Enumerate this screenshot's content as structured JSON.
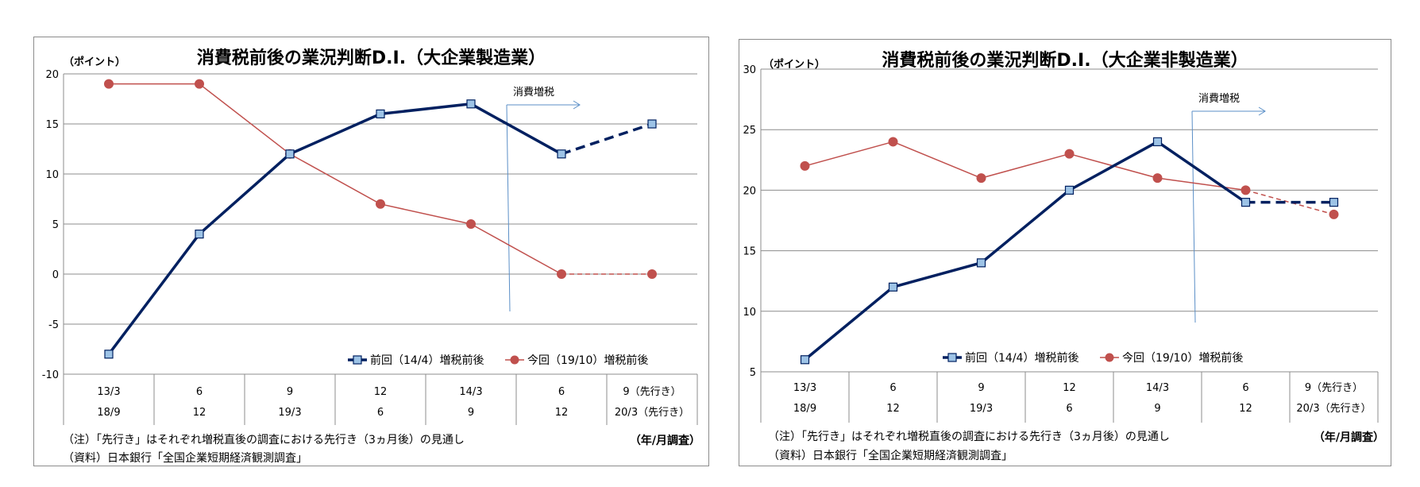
{
  "chart_data": [
    {
      "type": "line",
      "title": "消費税前後の業況判断D.I.（大企業製造業）",
      "ylabel": "（ポイント）",
      "ylim": [
        -10,
        20
      ],
      "yticks": [
        -10,
        -5,
        0,
        5,
        10,
        15,
        20
      ],
      "x_label": "（年/月調査）",
      "categories_row1": [
        "13/3",
        "6",
        "9",
        "12",
        "14/3",
        "6",
        "9（先行き）"
      ],
      "categories_row2": [
        "18/9",
        "12",
        "19/3",
        "6",
        "9",
        "12",
        "20/3（先行き）"
      ],
      "series": [
        {
          "name": "前回（14/4）増税前後",
          "values": [
            -8,
            4,
            12,
            16,
            17,
            12,
            15
          ],
          "color": "#002060",
          "dashed_from": 5
        },
        {
          "name": "今回（19/10）増税前後",
          "values": [
            19,
            19,
            12,
            7,
            5,
            0,
            0
          ],
          "color": "#C0504D",
          "dashed_from": 5
        }
      ],
      "annotation": "消費増税",
      "annotation_x": 4.5,
      "legend_position": "bottom-right",
      "grid": true,
      "notes": [
        "（注）「先行き」はそれぞれ増税直後の調査における先行き（3ヵ月後）の見通し",
        "（資料）日本銀行「全国企業短期経済観測調査」"
      ]
    },
    {
      "type": "line",
      "title": "消費税前後の業況判断D.I.（大企業非製造業）",
      "ylabel": "（ポイント）",
      "ylim": [
        5,
        30
      ],
      "yticks": [
        5,
        10,
        15,
        20,
        25,
        30
      ],
      "x_label": "（年/月調査）",
      "categories_row1": [
        "13/3",
        "6",
        "9",
        "12",
        "14/3",
        "6",
        "9（先行き）"
      ],
      "categories_row2": [
        "18/9",
        "12",
        "19/3",
        "6",
        "9",
        "12",
        "20/3（先行き）"
      ],
      "series": [
        {
          "name": "前回（14/4）増税前後",
          "values": [
            6,
            12,
            14,
            20,
            24,
            19,
            19
          ],
          "color": "#002060",
          "dashed_from": 5
        },
        {
          "name": "今回（19/10）増税前後",
          "values": [
            22,
            24,
            21,
            23,
            21,
            20,
            18
          ],
          "color": "#C0504D",
          "dashed_from": 5
        }
      ],
      "annotation": "消費増税",
      "annotation_x": 4.5,
      "legend_position": "bottom-right",
      "grid": true,
      "notes": [
        "（注）「先行き」はそれぞれ増税直後の調査における先行き（3ヵ月後）の見通し",
        "（資料）日本銀行「全国企業短期経済観測調査」"
      ]
    }
  ]
}
